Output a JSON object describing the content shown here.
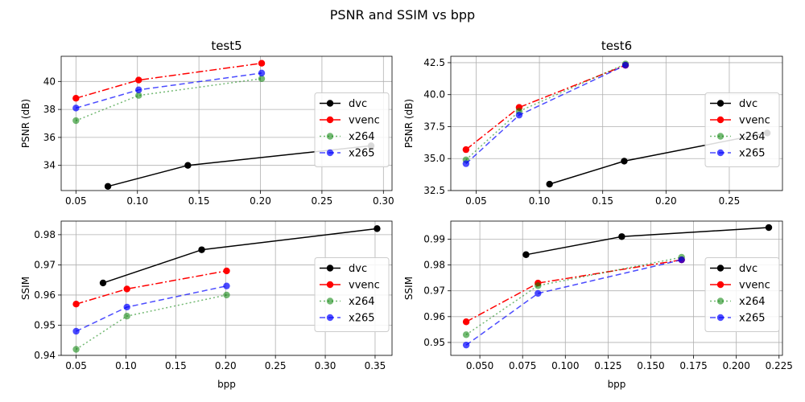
{
  "figure_title": "PSNR and SSIM vs bpp",
  "chart_data": [
    {
      "type": "line",
      "title": "test5",
      "xlabel": "",
      "ylabel": "PSNR (dB)",
      "xlim": [
        0.038,
        0.307
      ],
      "ylim": [
        32.2,
        41.8
      ],
      "xticks": [
        0.05,
        0.1,
        0.15,
        0.2,
        0.25,
        0.3
      ],
      "xtick_labels": [
        "0.05",
        "0.10",
        "0.15",
        "0.20",
        "0.25",
        "0.30"
      ],
      "yticks": [
        34,
        36,
        38,
        40
      ],
      "ytick_labels": [
        "34",
        "36",
        "38",
        "40"
      ],
      "grid": true,
      "legend_position": "center-right",
      "series": [
        {
          "name": "dvc",
          "color": "#000000",
          "dash": "solid",
          "alpha": 1.0,
          "x": [
            0.076,
            0.141,
            0.29
          ],
          "y": [
            32.5,
            34.0,
            35.4
          ]
        },
        {
          "name": "vvenc",
          "color": "#ff0000",
          "dash": "dashdot",
          "alpha": 1.0,
          "x": [
            0.05,
            0.101,
            0.201
          ],
          "y": [
            38.8,
            40.1,
            41.3
          ]
        },
        {
          "name": "x264",
          "color": "#008000",
          "dash": "dotted",
          "alpha": 0.55,
          "x": [
            0.05,
            0.101,
            0.201
          ],
          "y": [
            37.2,
            39.0,
            40.2
          ]
        },
        {
          "name": "x265",
          "color": "#0000ff",
          "dash": "dashed",
          "alpha": 0.7,
          "x": [
            0.05,
            0.101,
            0.201
          ],
          "y": [
            38.1,
            39.4,
            40.6
          ]
        }
      ]
    },
    {
      "type": "line",
      "title": "test6",
      "xlabel": "",
      "ylabel": "PSNR (dB)",
      "xlim": [
        0.03,
        0.292
      ],
      "ylim": [
        32.5,
        43.0
      ],
      "xticks": [
        0.05,
        0.1,
        0.15,
        0.2,
        0.25
      ],
      "xtick_labels": [
        "0.05",
        "0.10",
        "0.15",
        "0.20",
        "0.25"
      ],
      "yticks": [
        32.5,
        35.0,
        37.5,
        40.0,
        42.5
      ],
      "ytick_labels": [
        "32.5",
        "35.0",
        "37.5",
        "40.0",
        "42.5"
      ],
      "grid": true,
      "legend_position": "center-right",
      "series": [
        {
          "name": "dvc",
          "color": "#000000",
          "dash": "solid",
          "alpha": 1.0,
          "x": [
            0.108,
            0.167,
            0.28
          ],
          "y": [
            33.0,
            34.8,
            37.0
          ]
        },
        {
          "name": "vvenc",
          "color": "#ff0000",
          "dash": "dashdot",
          "alpha": 1.0,
          "x": [
            0.042,
            0.084,
            0.168
          ],
          "y": [
            35.7,
            39.0,
            42.3
          ]
        },
        {
          "name": "x264",
          "color": "#008000",
          "dash": "dotted",
          "alpha": 0.55,
          "x": [
            0.042,
            0.084,
            0.168
          ],
          "y": [
            34.9,
            38.7,
            42.4
          ]
        },
        {
          "name": "x265",
          "color": "#0000ff",
          "dash": "dashed",
          "alpha": 0.7,
          "x": [
            0.042,
            0.084,
            0.168
          ],
          "y": [
            34.6,
            38.4,
            42.3
          ]
        }
      ]
    },
    {
      "type": "line",
      "title": "",
      "xlabel": "bpp",
      "ylabel": "SSIM",
      "xlim": [
        0.035,
        0.367
      ],
      "ylim": [
        0.94,
        0.9845
      ],
      "xticks": [
        0.05,
        0.1,
        0.15,
        0.2,
        0.25,
        0.3,
        0.35
      ],
      "xtick_labels": [
        "0.05",
        "0.10",
        "0.15",
        "0.20",
        "0.25",
        "0.30",
        "0.35"
      ],
      "yticks": [
        0.94,
        0.95,
        0.96,
        0.97,
        0.98
      ],
      "ytick_labels": [
        "0.94",
        "0.95",
        "0.96",
        "0.97",
        "0.98"
      ],
      "grid": true,
      "legend_position": "center-right",
      "series": [
        {
          "name": "dvc",
          "color": "#000000",
          "dash": "solid",
          "alpha": 1.0,
          "x": [
            0.077,
            0.176,
            0.352
          ],
          "y": [
            0.964,
            0.975,
            0.982
          ]
        },
        {
          "name": "vvenc",
          "color": "#ff0000",
          "dash": "dashdot",
          "alpha": 1.0,
          "x": [
            0.05,
            0.101,
            0.201
          ],
          "y": [
            0.957,
            0.962,
            0.968
          ]
        },
        {
          "name": "x264",
          "color": "#008000",
          "dash": "dotted",
          "alpha": 0.55,
          "x": [
            0.05,
            0.101,
            0.201
          ],
          "y": [
            0.942,
            0.953,
            0.96
          ]
        },
        {
          "name": "x265",
          "color": "#0000ff",
          "dash": "dashed",
          "alpha": 0.7,
          "x": [
            0.05,
            0.101,
            0.201
          ],
          "y": [
            0.948,
            0.956,
            0.963
          ]
        }
      ]
    },
    {
      "type": "line",
      "title": "",
      "xlabel": "bpp",
      "ylabel": "SSIM",
      "xlim": [
        0.033,
        0.227
      ],
      "ylim": [
        0.945,
        0.997
      ],
      "xticks": [
        0.05,
        0.075,
        0.1,
        0.125,
        0.15,
        0.175,
        0.2,
        0.225
      ],
      "xtick_labels": [
        "0.050",
        "0.075",
        "0.100",
        "0.125",
        "0.150",
        "0.175",
        "0.200",
        "0.225"
      ],
      "yticks": [
        0.95,
        0.96,
        0.97,
        0.98,
        0.99
      ],
      "ytick_labels": [
        "0.95",
        "0.96",
        "0.97",
        "0.98",
        "0.99"
      ],
      "grid": true,
      "legend_position": "center-right",
      "series": [
        {
          "name": "dvc",
          "color": "#000000",
          "dash": "solid",
          "alpha": 1.0,
          "x": [
            0.077,
            0.133,
            0.219
          ],
          "y": [
            0.984,
            0.991,
            0.9945
          ]
        },
        {
          "name": "vvenc",
          "color": "#ff0000",
          "dash": "dashdot",
          "alpha": 1.0,
          "x": [
            0.042,
            0.084,
            0.168
          ],
          "y": [
            0.958,
            0.973,
            0.982
          ]
        },
        {
          "name": "x264",
          "color": "#008000",
          "dash": "dotted",
          "alpha": 0.55,
          "x": [
            0.042,
            0.084,
            0.168
          ],
          "y": [
            0.953,
            0.972,
            0.983
          ]
        },
        {
          "name": "x265",
          "color": "#0000ff",
          "dash": "dashed",
          "alpha": 0.7,
          "x": [
            0.042,
            0.084,
            0.168
          ],
          "y": [
            0.949,
            0.969,
            0.982
          ]
        }
      ]
    }
  ]
}
